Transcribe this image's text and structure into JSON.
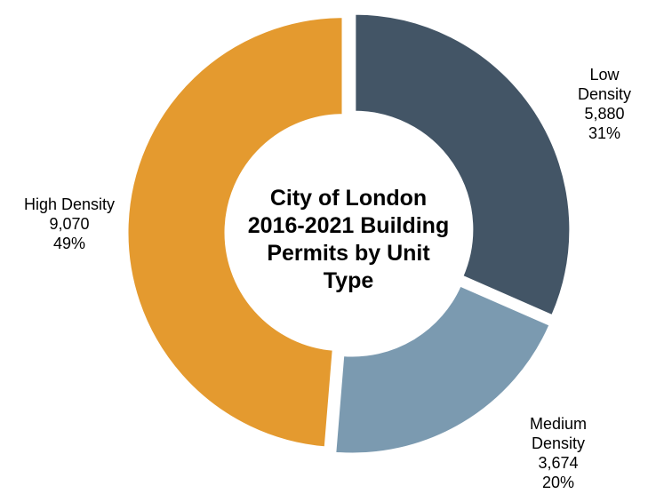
{
  "chart_data": {
    "type": "donut",
    "title": "City of London 2016-2021 Building Permits by Unit Type",
    "categories": [
      "Low Density",
      "Medium Density",
      "High Density"
    ],
    "values": [
      5880,
      3674,
      9070
    ],
    "value_labels": [
      "5,880",
      "3,674",
      "9,070"
    ],
    "percentages": [
      31,
      20,
      49
    ],
    "percentage_labels": [
      "31%",
      "20%",
      "49%"
    ],
    "colors": [
      "#435566",
      "#7b9ab0",
      "#e49a2f"
    ]
  }
}
